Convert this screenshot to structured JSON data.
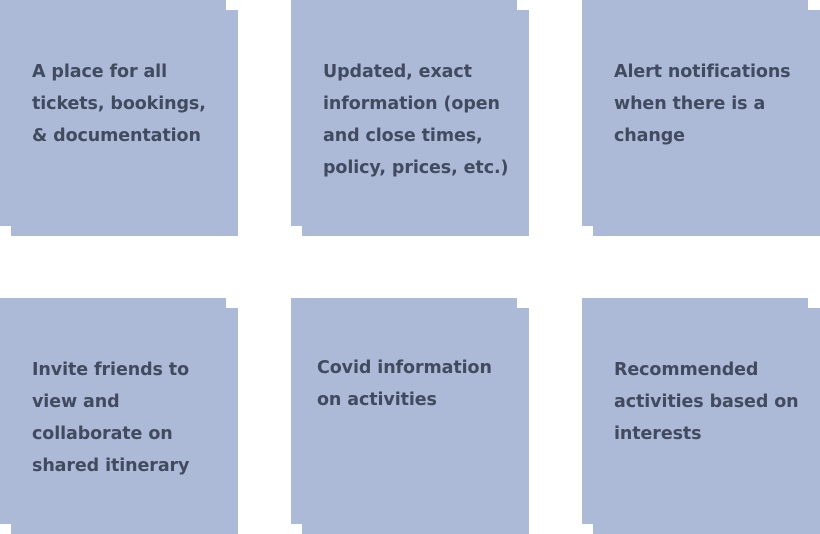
{
  "notes": [
    {
      "text": "A place for all tickets, bookings, & documentation"
    },
    {
      "text": "Updated, exact information (open and close times, policy, prices, etc.)"
    },
    {
      "text": "Alert notifications when there is a change"
    },
    {
      "text": "Invite friends to view and collaborate on shared itinerary"
    },
    {
      "text": "Covid information on activities"
    },
    {
      "text": "Recommended activities based on interests"
    }
  ],
  "colors": {
    "note_background": "#adbad7",
    "note_text": "#414b60",
    "canvas_background": "#ffffff"
  }
}
